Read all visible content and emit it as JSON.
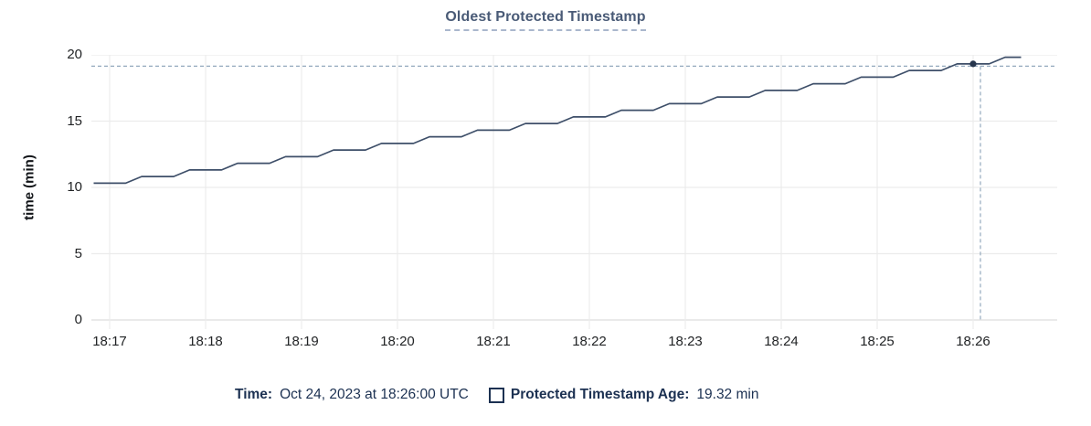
{
  "chart": {
    "title": "Oldest Protected Timestamp",
    "y_axis_label": "time (min)",
    "y_ticks": [
      20,
      15,
      10,
      5,
      0
    ],
    "x_ticks": [
      "18:17",
      "18:18",
      "18:19",
      "18:20",
      "18:21",
      "18:22",
      "18:23",
      "18:24",
      "18:25",
      "18:26"
    ]
  },
  "tooltip": {
    "time_label": "Time:",
    "time_value": "Oct 24, 2023 at 18:26:00 UTC",
    "series_label": "Protected Timestamp Age:",
    "series_value": "19.32 min"
  },
  "colors": {
    "line": "#3e4f69",
    "dot": "#26354d",
    "crosshair": "#94a9bd",
    "grid": "#ececec",
    "axis": "#dedede",
    "title": "#4a5b77",
    "legend_text": "#1c3152",
    "tick_text": "#222426"
  },
  "chart_data": {
    "type": "line",
    "title": "Oldest Protected Timestamp",
    "xlabel": "",
    "ylabel": "time (min)",
    "ylim": [
      0,
      20
    ],
    "grid": true,
    "legend_position": "bottom",
    "x_tick_labels": [
      "18:17",
      "18:18",
      "18:19",
      "18:20",
      "18:21",
      "18:22",
      "18:23",
      "18:24",
      "18:25",
      "18:26"
    ],
    "x": [
      "18:16:50",
      "18:17:00",
      "18:17:10",
      "18:17:20",
      "18:17:30",
      "18:17:40",
      "18:17:50",
      "18:18:00",
      "18:18:10",
      "18:18:20",
      "18:18:30",
      "18:18:40",
      "18:18:50",
      "18:19:00",
      "18:19:10",
      "18:19:20",
      "18:19:30",
      "18:19:40",
      "18:19:50",
      "18:20:00",
      "18:20:10",
      "18:20:20",
      "18:20:30",
      "18:20:40",
      "18:20:50",
      "18:21:00",
      "18:21:10",
      "18:21:20",
      "18:21:30",
      "18:21:40",
      "18:21:50",
      "18:22:00",
      "18:22:10",
      "18:22:20",
      "18:22:30",
      "18:22:40",
      "18:22:50",
      "18:23:00",
      "18:23:10",
      "18:23:20",
      "18:23:30",
      "18:23:40",
      "18:23:50",
      "18:24:00",
      "18:24:10",
      "18:24:20",
      "18:24:30",
      "18:24:40",
      "18:24:50",
      "18:25:00",
      "18:25:10",
      "18:25:20",
      "18:25:30",
      "18:25:40",
      "18:25:50",
      "18:26:00",
      "18:26:10",
      "18:26:20",
      "18:26:30"
    ],
    "series": [
      {
        "name": "Protected Timestamp Age",
        "values": [
          10.32,
          10.32,
          10.32,
          10.82,
          10.82,
          10.82,
          11.32,
          11.32,
          11.32,
          11.82,
          11.82,
          11.82,
          12.32,
          12.32,
          12.32,
          12.82,
          12.82,
          12.82,
          13.32,
          13.32,
          13.32,
          13.82,
          13.82,
          13.82,
          14.32,
          14.32,
          14.32,
          14.82,
          14.82,
          14.82,
          15.32,
          15.32,
          15.32,
          15.82,
          15.82,
          15.82,
          16.32,
          16.32,
          16.32,
          16.82,
          16.82,
          16.82,
          17.32,
          17.32,
          17.32,
          17.82,
          17.82,
          17.82,
          18.32,
          18.32,
          18.32,
          18.82,
          18.82,
          18.82,
          19.32,
          19.32,
          19.32,
          19.82,
          19.82
        ]
      }
    ],
    "hover_point": {
      "x": "18:26:00",
      "y": 19.32
    }
  }
}
